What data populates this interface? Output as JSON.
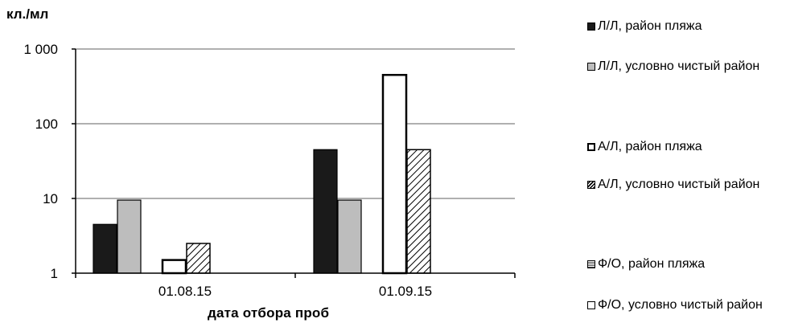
{
  "chart_data": {
    "type": "bar",
    "ylabel": "кл./мл",
    "xlabel": "дата отбора проб",
    "y_scale": "log",
    "ylim": [
      1,
      1000
    ],
    "y_ticks": [
      "1",
      "10",
      "100",
      "1 000"
    ],
    "grid": true,
    "legend_position": "right",
    "categories": [
      "01.08.15",
      "01.09.15"
    ],
    "series": [
      {
        "name": "Л/Л, район пляжа",
        "pattern": "solid-black",
        "values": [
          4.5,
          45
        ]
      },
      {
        "name": "Л/Л, условно чистый район",
        "pattern": "solid-gray",
        "values": [
          9.5,
          9.5
        ]
      },
      {
        "name": "А/Л, район пляжа",
        "pattern": "white",
        "values": [
          1.5,
          450
        ]
      },
      {
        "name": "А/Л, условно чистый район",
        "pattern": "hatch",
        "values": [
          2.5,
          45
        ]
      },
      {
        "name": "Ф/О, район пляжа",
        "pattern": "grid",
        "values": [
          null,
          null
        ]
      },
      {
        "name": "Ф/О, условно чистый район",
        "pattern": "white",
        "values": [
          null,
          null
        ]
      }
    ],
    "colors": {
      "black": "#1a1a1a",
      "gray": "#bdbdbd",
      "white": "#ffffff",
      "grid": "#808080"
    }
  }
}
